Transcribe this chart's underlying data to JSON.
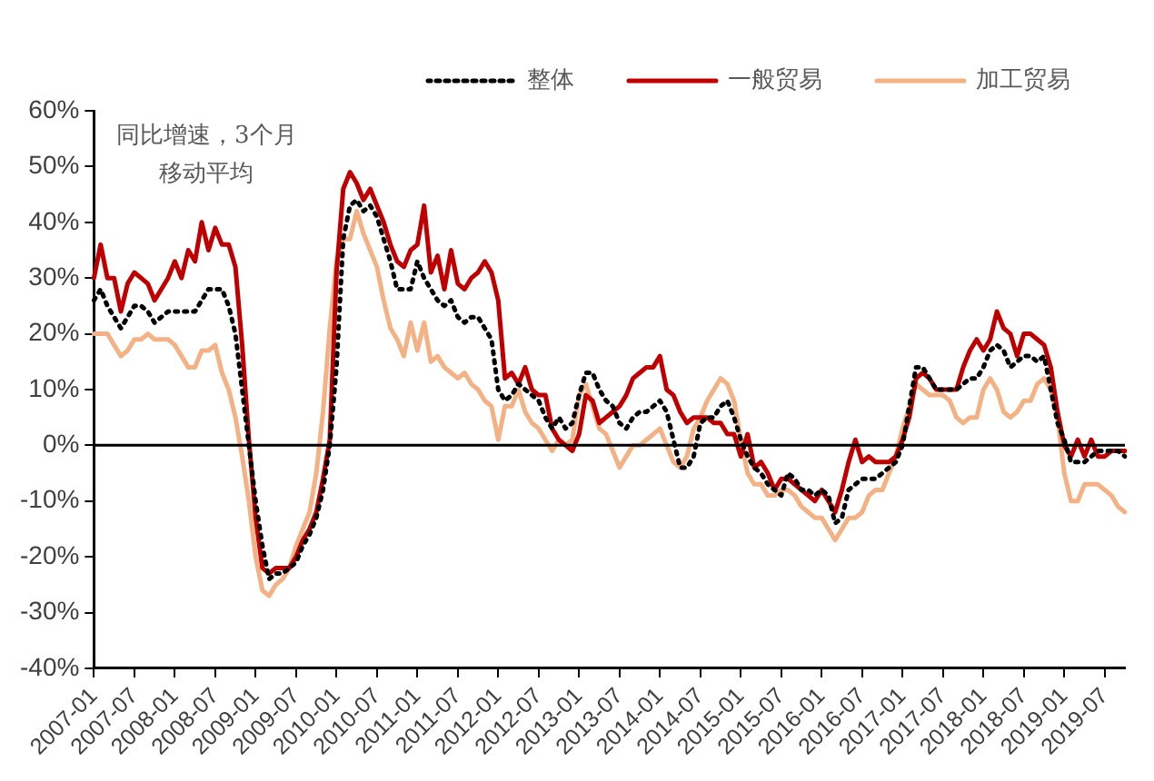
{
  "chart_data": {
    "type": "line",
    "annotations": [
      "同比增速，3个月移动平均"
    ],
    "categories": [
      "2007-01",
      null,
      null,
      null,
      null,
      null,
      "2007-07",
      null,
      null,
      null,
      null,
      null,
      "2008-01",
      null,
      null,
      null,
      null,
      null,
      "2008-07",
      null,
      null,
      null,
      null,
      null,
      "2009-01",
      null,
      null,
      null,
      null,
      null,
      "2009-07",
      null,
      null,
      null,
      null,
      null,
      "2010-01",
      null,
      null,
      null,
      null,
      null,
      "2010-07",
      null,
      null,
      null,
      null,
      null,
      "2011-01",
      null,
      null,
      null,
      null,
      null,
      "2011-07",
      null,
      null,
      null,
      null,
      null,
      "2012-01",
      null,
      null,
      null,
      null,
      null,
      "2012-07",
      null,
      null,
      null,
      null,
      null,
      "2013-01",
      null,
      null,
      null,
      null,
      null,
      "2013-07",
      null,
      null,
      null,
      null,
      null,
      "2014-01",
      null,
      null,
      null,
      null,
      null,
      "2014-07",
      null,
      null,
      null,
      null,
      null,
      "2015-01",
      null,
      null,
      null,
      null,
      null,
      "2015-07",
      null,
      null,
      null,
      null,
      null,
      "2016-01",
      null,
      null,
      null,
      null,
      null,
      "2016-07",
      null,
      null,
      null,
      null,
      null,
      "2017-01",
      null,
      null,
      null,
      null,
      null,
      "2017-07",
      null,
      null,
      null,
      null,
      null,
      "2018-01",
      null,
      null,
      null,
      null,
      null,
      "2018-07",
      null,
      null,
      null,
      null,
      null,
      "2019-01",
      null,
      null,
      null,
      null,
      null,
      "2019-07",
      null,
      null,
      null
    ],
    "series": [
      {
        "name": "整体",
        "color": "#000000",
        "line_style": "dotted",
        "values": [
          26,
          28,
          25,
          23,
          21,
          23,
          25,
          25,
          24,
          22,
          23,
          24,
          24,
          24,
          24,
          24,
          26,
          28,
          28,
          28,
          25,
          20,
          10,
          0,
          -10,
          -18,
          -24,
          -23,
          -23,
          -22,
          -21,
          -18,
          -16,
          -13,
          -8,
          0,
          14,
          37,
          43,
          44,
          42,
          43,
          41,
          37,
          33,
          28,
          28,
          28,
          33,
          30,
          28,
          26,
          25,
          26,
          23,
          22,
          23,
          23,
          21,
          19,
          10,
          8,
          9,
          11,
          10,
          9,
          8,
          5,
          3,
          5,
          3,
          4,
          9,
          13,
          13,
          10,
          8,
          7,
          4,
          3,
          5,
          6,
          6,
          7,
          8,
          6,
          1,
          -4,
          -4,
          -2,
          4,
          5,
          5,
          7,
          8,
          5,
          1,
          -2,
          -4,
          -5,
          -7,
          -8,
          -9,
          -5,
          -6,
          -8,
          -8,
          -9,
          -8,
          -9,
          -14,
          -13,
          -8,
          -7,
          -6,
          -6,
          -6,
          -5,
          -4,
          -3,
          0,
          7,
          14,
          14,
          12,
          10,
          10,
          10,
          10,
          11,
          12,
          12,
          14,
          17,
          18,
          17,
          14,
          15,
          16,
          16,
          15,
          16,
          10,
          4,
          1,
          -3,
          -3,
          -3,
          -2,
          -1,
          -1,
          -1,
          -1,
          -2
        ]
      },
      {
        "name": "一般贸易",
        "color": "#c00000",
        "line_style": "solid",
        "values": [
          30,
          36,
          30,
          30,
          24,
          29,
          31,
          30,
          29,
          26,
          28,
          30,
          33,
          30,
          35,
          33,
          40,
          35,
          39,
          36,
          36,
          32,
          18,
          1,
          -13,
          -22,
          -23,
          -22,
          -22,
          -22,
          -20,
          -17,
          -15,
          -12,
          -6,
          1,
          31,
          46,
          49,
          47,
          44,
          46,
          43,
          40,
          36,
          33,
          32,
          35,
          36,
          43,
          31,
          34,
          28,
          35,
          29,
          28,
          30,
          31,
          33,
          31,
          26,
          12,
          13,
          11,
          14,
          10,
          9,
          9,
          3,
          1,
          0,
          -1,
          2,
          9,
          8,
          4,
          5,
          6,
          7,
          9,
          12,
          13,
          14,
          14,
          16,
          10,
          9,
          6,
          4,
          5,
          5,
          5,
          4,
          4,
          2,
          2,
          -2,
          2,
          -4,
          -3,
          -5,
          -8,
          -6,
          -6,
          -7,
          -8,
          -9,
          -10,
          -8,
          -10,
          -12,
          -8,
          -3,
          1,
          -3,
          -2,
          -3,
          -3,
          -3,
          -2,
          1,
          5,
          12,
          13,
          12,
          10,
          10,
          10,
          10,
          14,
          17,
          19,
          17,
          19,
          24,
          21,
          20,
          16,
          20,
          20,
          19,
          18,
          14,
          6,
          0,
          -2,
          1,
          -2,
          1,
          -2,
          -2,
          -1,
          -1,
          -1
        ]
      },
      {
        "name": "加工贸易",
        "color": "#f4b183",
        "line_style": "solid",
        "values": [
          20,
          20,
          20,
          18,
          16,
          17,
          19,
          19,
          20,
          19,
          19,
          19,
          18,
          16,
          14,
          14,
          17,
          17,
          18,
          13,
          10,
          5,
          -2,
          -10,
          -20,
          -26,
          -27,
          -25,
          -24,
          -22,
          -18,
          -15,
          -12,
          -5,
          6,
          21,
          33,
          37,
          37,
          42,
          38,
          35,
          32,
          26,
          21,
          19,
          16,
          22,
          17,
          22,
          15,
          16,
          14,
          13,
          12,
          13,
          11,
          10,
          8,
          7,
          1,
          7,
          7,
          10,
          6,
          4,
          3,
          1,
          -1,
          1,
          0,
          1,
          9,
          11,
          7,
          3,
          2,
          -1,
          -4,
          -2,
          0,
          0,
          1,
          2,
          3,
          0,
          -3,
          -4,
          -2,
          3,
          5,
          8,
          10,
          12,
          11,
          8,
          1,
          -5,
          -7,
          -7,
          -9,
          -9,
          -8,
          -8,
          -9,
          -11,
          -12,
          -13,
          -13,
          -15,
          -17,
          -15,
          -13,
          -13,
          -12,
          -9,
          -8,
          -8,
          -5,
          -2,
          3,
          7,
          11,
          10,
          9,
          9,
          9,
          8,
          5,
          4,
          5,
          5,
          10,
          12,
          10,
          6,
          5,
          6,
          8,
          8,
          11,
          12,
          10,
          5,
          -5,
          -10,
          -10,
          -7,
          -7,
          -7,
          -8,
          -9,
          -11,
          -12
        ]
      }
    ],
    "ylim": [
      -40,
      60
    ],
    "yticks": [
      {
        "value": -40,
        "label": "-40%"
      },
      {
        "value": -30,
        "label": "-30%"
      },
      {
        "value": -20,
        "label": "-20%"
      },
      {
        "value": -10,
        "label": "-10%"
      },
      {
        "value": 0,
        "label": "0%"
      },
      {
        "value": 10,
        "label": "10%"
      },
      {
        "value": 20,
        "label": "20%"
      },
      {
        "value": 30,
        "label": "30%"
      },
      {
        "value": 40,
        "label": "40%"
      },
      {
        "value": 50,
        "label": "50%"
      },
      {
        "value": 60,
        "label": "60%"
      }
    ],
    "ref_lines": [
      {
        "axis": "y",
        "value": 0,
        "color": "#000000"
      }
    ],
    "grid": false,
    "legend": "top",
    "marker": "none"
  }
}
